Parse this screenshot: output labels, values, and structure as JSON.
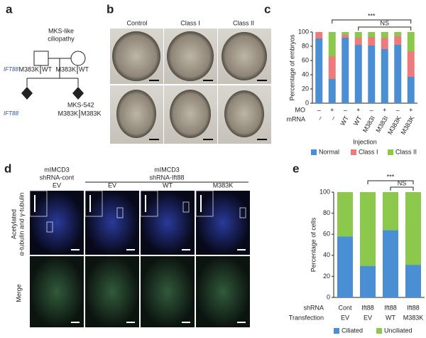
{
  "panels": {
    "a": {
      "letter": "a",
      "title": [
        "MKS-like",
        "ciliopathy"
      ],
      "gene_labels": [
        "IFT88",
        "IFT88"
      ],
      "parent_genotypes": [
        [
          "M383K",
          "WT"
        ],
        [
          "M383K",
          "WT"
        ]
      ],
      "proband": "MKS-542",
      "proband_genotype": [
        "M383K",
        "M383K"
      ]
    },
    "b": {
      "letter": "b",
      "columns": [
        "Control",
        "Class I",
        "Class II"
      ]
    },
    "d": {
      "letter": "d",
      "groups": [
        [
          "mIMCD3",
          "shRNA-cont"
        ],
        [
          "mIMCD3",
          "shRNA-Ift88"
        ]
      ],
      "columns": [
        "EV",
        "EV",
        "WT",
        "M383K"
      ],
      "rows": [
        [
          "Acetylated",
          "α-tubulin and γ-tubulin"
        ],
        [
          "Merge"
        ]
      ]
    }
  },
  "chart_data": [
    {
      "type": "stacked-bar",
      "letter": "c",
      "y_label": "Percentage of embryos",
      "x_label": "Injection",
      "row_names": [
        "MO",
        "mRNA"
      ],
      "categories": [
        [
          "–",
          "–"
        ],
        [
          "+",
          "–"
        ],
        [
          "–",
          "WT"
        ],
        [
          "+",
          "WT"
        ],
        [
          "–",
          "M383I"
        ],
        [
          "+",
          "M383I"
        ],
        [
          "–",
          "M383K"
        ],
        [
          "+",
          "M383K"
        ]
      ],
      "series": [
        {
          "name": "Normal",
          "color": "#4a8fd4",
          "values": [
            91,
            34,
            92,
            82,
            81,
            76,
            82,
            37
          ]
        },
        {
          "name": "Class I",
          "color": "#ee7b7b",
          "values": [
            9,
            32,
            4,
            10,
            12,
            16,
            12,
            36
          ]
        },
        {
          "name": "Class II",
          "color": "#8cc84b",
          "values": [
            0,
            34,
            4,
            8,
            7,
            8,
            6,
            27
          ]
        }
      ],
      "brackets": [
        {
          "from": 1,
          "to": 7,
          "label": "***"
        },
        {
          "from": 3,
          "to": 7,
          "label": "NS"
        }
      ],
      "ylim": [
        0,
        100
      ],
      "yticks": [
        0,
        20,
        40,
        60,
        80,
        100
      ]
    },
    {
      "type": "stacked-bar",
      "letter": "e",
      "y_label": "Percentage of cells",
      "row_names": [
        "shRNA",
        "Transfection"
      ],
      "categories": [
        [
          "Cont",
          "EV"
        ],
        [
          "Ift88",
          "EV"
        ],
        [
          "Ift88",
          "WT"
        ],
        [
          "Ift88",
          "M383K"
        ]
      ],
      "series": [
        {
          "name": "Ciliated",
          "color": "#4a8fd4",
          "values": [
            58,
            30,
            64,
            31
          ]
        },
        {
          "name": "Unciliated",
          "color": "#8cc84b",
          "values": [
            42,
            70,
            36,
            69
          ]
        }
      ],
      "brackets": [
        {
          "from": 1,
          "to": 3,
          "label": "***"
        },
        {
          "from": 2,
          "to": 3,
          "label": "NS"
        }
      ],
      "ylim": [
        0,
        100
      ],
      "yticks": [
        0,
        20,
        40,
        60,
        80,
        100
      ]
    }
  ]
}
